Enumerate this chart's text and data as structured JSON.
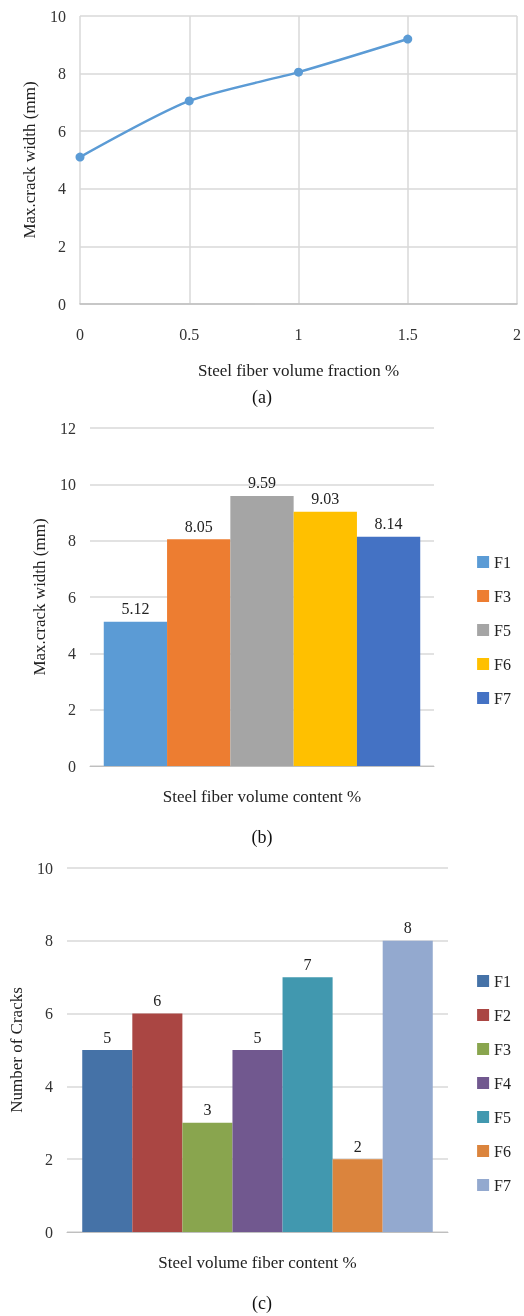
{
  "chart_data": [
    {
      "type": "line",
      "xlabel": "Steel fiber volume fraction %",
      "ylabel": "Max.crack width (mm)",
      "annotations": [
        "(a)"
      ],
      "x": [
        0,
        0.5,
        1,
        1.5
      ],
      "series": [
        {
          "color": "#5b9bd5",
          "values": [
            5.1,
            7.05,
            8.05,
            9.2
          ]
        }
      ],
      "xlim": [
        0,
        2
      ],
      "xticks": [
        0,
        0.5,
        1,
        1.5,
        2
      ],
      "ylim": [
        0,
        10
      ],
      "yticks": [
        0,
        2,
        4,
        6,
        8,
        10
      ],
      "grid": true,
      "marker": "circle",
      "line_style": "solid"
    },
    {
      "type": "bar",
      "xlabel": "Steel fiber volume content %",
      "ylabel": "Max.crack width (mm)",
      "annotations": [
        "(b)"
      ],
      "categories": [
        null
      ],
      "series": [
        {
          "name": "F1",
          "color": "#5b9bd5",
          "values": [
            5.12
          ]
        },
        {
          "name": "F3",
          "color": "#ed7d31",
          "values": [
            8.05
          ]
        },
        {
          "name": "F5",
          "color": "#a5a5a5",
          "values": [
            9.59
          ]
        },
        {
          "name": "F6",
          "color": "#ffc000",
          "values": [
            9.03
          ]
        },
        {
          "name": "F7",
          "color": "#4472c4",
          "values": [
            8.14
          ]
        }
      ],
      "ylim": [
        0,
        12
      ],
      "yticks": [
        0,
        2,
        4,
        6,
        8,
        10,
        12
      ],
      "grid": "y",
      "legend": "right",
      "data_labels": true
    },
    {
      "type": "bar",
      "xlabel": "Steel volume fiber content %",
      "ylabel": "Number of Cracks",
      "annotations": [
        "(c)"
      ],
      "categories": [
        null
      ],
      "series": [
        {
          "name": "F1",
          "color": "#4572a7",
          "values": [
            5
          ]
        },
        {
          "name": "F2",
          "color": "#aa4643",
          "values": [
            6
          ]
        },
        {
          "name": "F3",
          "color": "#89a54e",
          "values": [
            3
          ]
        },
        {
          "name": "F4",
          "color": "#71588f",
          "values": [
            5
          ]
        },
        {
          "name": "F5",
          "color": "#4198af",
          "values": [
            7
          ]
        },
        {
          "name": "F6",
          "color": "#db843d",
          "values": [
            2
          ]
        },
        {
          "name": "F7",
          "color": "#93a9cf",
          "values": [
            8
          ]
        }
      ],
      "ylim": [
        0,
        10
      ],
      "yticks": [
        0,
        2,
        4,
        6,
        8,
        10
      ],
      "grid": "y",
      "legend": "right",
      "data_labels": true
    }
  ]
}
